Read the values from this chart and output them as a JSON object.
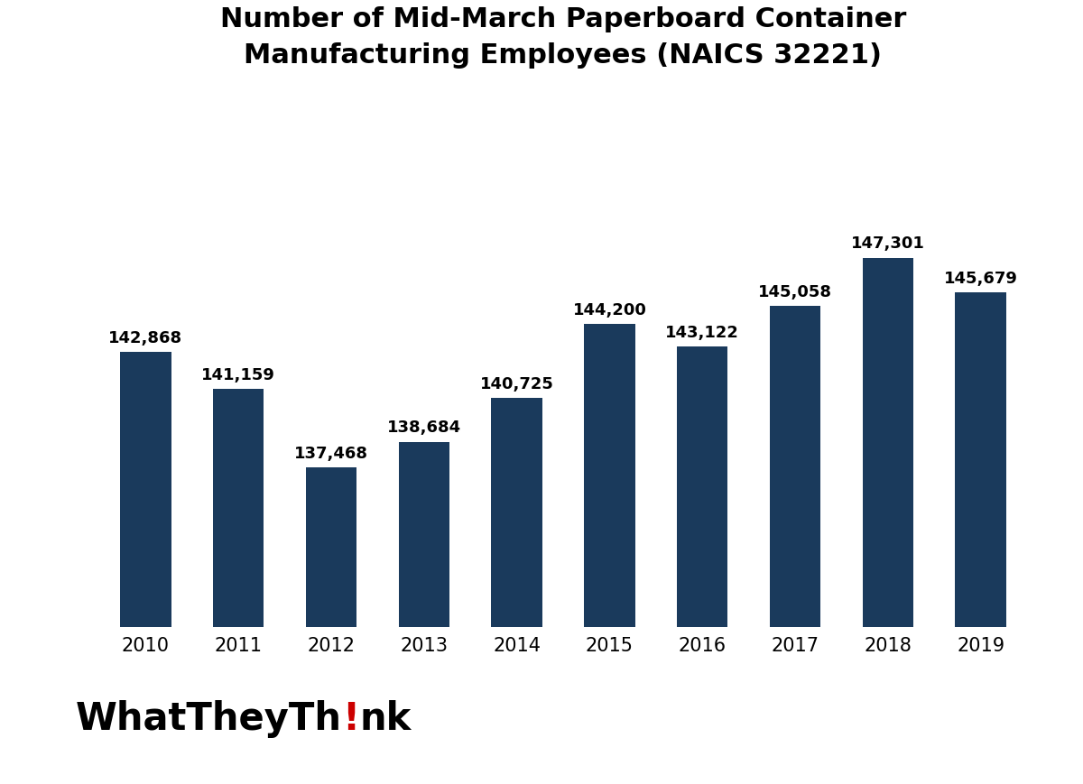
{
  "title_line1": "Number of Mid-March Paperboard Container",
  "title_line2": "Manufacturing Employees (NAICS 32221)",
  "years": [
    "2010",
    "2011",
    "2012",
    "2013",
    "2014",
    "2015",
    "2016",
    "2017",
    "2018",
    "2019"
  ],
  "values": [
    142868,
    141159,
    137468,
    138684,
    140725,
    144200,
    143122,
    145058,
    147301,
    145679
  ],
  "labels": [
    "142,868",
    "141,159",
    "137,468",
    "138,684",
    "140,725",
    "144,200",
    "143,122",
    "145,058",
    "147,301",
    "145,679"
  ],
  "bar_color": "#1a3a5c",
  "background_color": "#ffffff",
  "title_fontsize": 22,
  "label_fontsize": 13,
  "tick_fontsize": 15,
  "ylim_min": 130000,
  "ylim_max": 155000,
  "logo_color_main": "#000000",
  "logo_color_exclaim": "#cc0000"
}
